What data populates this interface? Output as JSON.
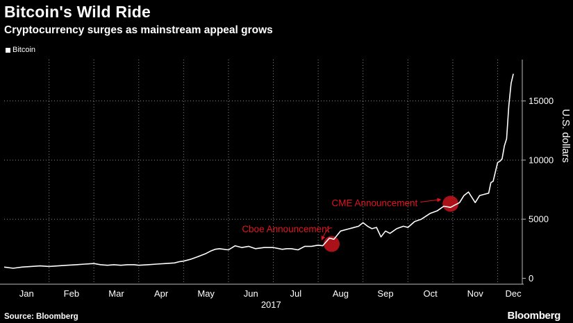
{
  "header": {
    "title": "Bitcoin's Wild Ride",
    "subtitle": "Cryptocurrency surges as mainstream appeal grows"
  },
  "footer": {
    "source": "Source: Bloomberg",
    "brand": "Bloomberg"
  },
  "chart_data": {
    "type": "line",
    "title": "Bitcoin's Wild Ride",
    "subtitle": "Cryptocurrency surges as mainstream appeal grows",
    "ylabel": "U.S. dollars",
    "xlabel": "2017",
    "ylim": [
      -500,
      18500
    ],
    "yticks": [
      0,
      5000,
      10000,
      15000
    ],
    "xlim": [
      0,
      11.55
    ],
    "x_tick_labels": [
      "Jan",
      "Feb",
      "Mar",
      "Apr",
      "May",
      "Jun",
      "Jul",
      "Aug",
      "Sep",
      "Oct",
      "Nov",
      "Dec"
    ],
    "x_tick_positions": [
      0.5,
      1.5,
      2.5,
      3.5,
      4.5,
      5.5,
      6.5,
      7.5,
      8.5,
      9.5,
      10.5,
      11.35
    ],
    "x_year_label": "2017",
    "grid": true,
    "legend": {
      "position": "top-left",
      "entries": [
        "Bitcoin"
      ]
    },
    "series": [
      {
        "name": "Bitcoin",
        "color": "#ffffff",
        "x": [
          0,
          0.2,
          0.4,
          0.6,
          0.8,
          1.0,
          1.2,
          1.4,
          1.6,
          1.8,
          2.0,
          2.15,
          2.3,
          2.45,
          2.6,
          2.75,
          2.9,
          3.0,
          3.2,
          3.4,
          3.6,
          3.8,
          3.9,
          4.0,
          4.15,
          4.3,
          4.5,
          4.6,
          4.7,
          4.8,
          5.0,
          5.15,
          5.3,
          5.45,
          5.6,
          5.8,
          6.0,
          6.2,
          6.3,
          6.4,
          6.55,
          6.7,
          6.85,
          7.0,
          7.1,
          7.25,
          7.35,
          7.5,
          7.7,
          7.9,
          8.0,
          8.1,
          8.2,
          8.3,
          8.4,
          8.5,
          8.6,
          8.75,
          8.9,
          9.0,
          9.15,
          9.3,
          9.5,
          9.65,
          9.8,
          9.95,
          10.05,
          10.15,
          10.25,
          10.35,
          10.5,
          10.6,
          10.7,
          10.8,
          10.85,
          10.9,
          11.0,
          11.05,
          11.1,
          11.15,
          11.2,
          11.25,
          11.3,
          11.35
        ],
        "values": [
          950,
          850,
          950,
          1000,
          1050,
          1000,
          1050,
          1100,
          1150,
          1200,
          1250,
          1150,
          1100,
          1150,
          1100,
          1150,
          1150,
          1100,
          1150,
          1200,
          1250,
          1300,
          1400,
          1450,
          1600,
          1800,
          2100,
          2300,
          2450,
          2500,
          2400,
          2750,
          2600,
          2700,
          2500,
          2600,
          2600,
          2450,
          2500,
          2500,
          2400,
          2700,
          2700,
          2800,
          2750,
          3400,
          3300,
          4000,
          4200,
          4400,
          4700,
          4400,
          4200,
          4300,
          3500,
          4000,
          3800,
          4200,
          4400,
          4300,
          4800,
          5000,
          5500,
          5700,
          6100,
          6000,
          6200,
          6400,
          7000,
          7300,
          6400,
          7000,
          7100,
          7200,
          8100,
          8200,
          9800,
          9900,
          10100,
          11200,
          11800,
          14600,
          16500,
          17300
        ]
      }
    ],
    "annotations": [
      {
        "text": "Cboe Announcement",
        "target_x": 7.3,
        "target_y": 2900,
        "label_x": 5.3,
        "label_y": 3900
      },
      {
        "text": "CME Announcement",
        "target_x": 9.95,
        "target_y": 6300,
        "label_x": 7.3,
        "label_y": 6100
      }
    ]
  }
}
